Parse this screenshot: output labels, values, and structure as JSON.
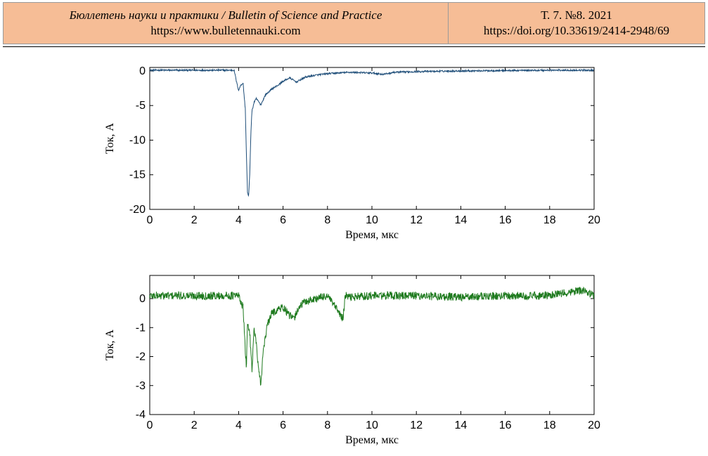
{
  "header": {
    "journal": "Бюллетень науки и практики / Bulletin of Science and Practice",
    "site": "https://www.bulletennauki.com",
    "issue": "Т. 7. №8. 2021",
    "doi": "https://doi.org/10.33619/2414-2948/69"
  },
  "chart_data": [
    {
      "type": "line",
      "xlabel": "Время, мкс",
      "ylabel": "Ток, А",
      "xlim": [
        0,
        20
      ],
      "ylim": [
        -20,
        0.5
      ],
      "xticks": [
        0,
        2,
        4,
        6,
        8,
        10,
        12,
        14,
        16,
        18,
        20
      ],
      "yticks": [
        0,
        -5,
        -10,
        -15,
        -20
      ],
      "grid": false,
      "color": "#1f4e79",
      "series": [
        {
          "x": [
            0,
            3.8,
            3.9,
            4.0,
            4.1,
            4.2,
            4.3,
            4.35,
            4.4,
            4.45,
            4.5,
            4.55,
            4.6,
            4.7,
            4.8,
            5.0,
            5.2,
            5.5,
            5.8,
            6.0,
            6.3,
            6.6,
            7.0,
            7.5,
            8.0,
            9.0,
            10.0,
            10.5,
            11.0,
            12.0,
            14.0,
            16.0,
            18.0,
            20.0
          ],
          "y": [
            0.1,
            0.1,
            -1.5,
            -2.8,
            -2.0,
            -1.8,
            -5.5,
            -12.0,
            -17.5,
            -18.2,
            -15.0,
            -9.0,
            -5.8,
            -4.5,
            -4.0,
            -4.9,
            -3.5,
            -2.6,
            -2.0,
            -1.5,
            -1.0,
            -1.6,
            -0.9,
            -0.6,
            -0.4,
            -0.2,
            -0.3,
            -0.5,
            -0.2,
            -0.1,
            0.0,
            0.05,
            0.1,
            0.1
          ]
        }
      ]
    },
    {
      "type": "line",
      "xlabel": "Время, мкс",
      "ylabel": "Ток, А",
      "xlim": [
        0,
        20
      ],
      "ylim": [
        -4,
        0.8
      ],
      "xticks": [
        0,
        2,
        4,
        6,
        8,
        10,
        12,
        14,
        16,
        18,
        20
      ],
      "yticks": [
        0,
        -1,
        -2,
        -3,
        -4
      ],
      "grid": false,
      "color": "#1e7a1e",
      "series": [
        {
          "x": [
            0,
            4.0,
            4.2,
            4.3,
            4.35,
            4.4,
            4.5,
            4.6,
            4.7,
            4.8,
            4.9,
            5.0,
            5.1,
            5.3,
            5.5,
            5.7,
            6.0,
            6.3,
            6.5,
            6.7,
            7.0,
            7.5,
            8.0,
            8.7,
            8.8,
            9.0,
            10.0,
            12.0,
            14.0,
            16.0,
            18.0,
            19.5,
            20.0
          ],
          "y": [
            0.1,
            0.1,
            -0.3,
            -1.8,
            -2.4,
            -0.8,
            -1.2,
            -2.4,
            -1.0,
            -1.6,
            -2.5,
            -3.0,
            -1.8,
            -0.9,
            -0.5,
            -0.4,
            -0.3,
            -0.6,
            -0.7,
            -0.3,
            -0.1,
            0.0,
            0.1,
            -0.7,
            0.1,
            0.05,
            0.1,
            0.1,
            0.05,
            0.1,
            0.1,
            0.3,
            0.1
          ]
        }
      ]
    }
  ]
}
